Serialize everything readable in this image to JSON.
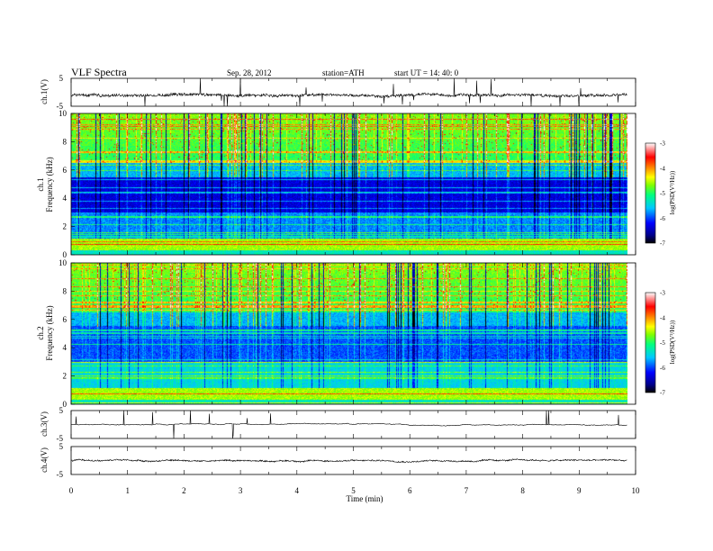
{
  "header": {
    "title": "VLF  Spectra",
    "date": "Sep. 28, 2012",
    "station": "station=ATH",
    "start": "start  UT  =    14: 40: 0"
  },
  "colors": {
    "colormap": [
      "#000000",
      "#00008b",
      "#0000ff",
      "#0060ff",
      "#00d8ff",
      "#00ff80",
      "#80ff00",
      "#ffff00",
      "#ff8000",
      "#ff0000",
      "#ffb0b0",
      "#ffffff"
    ]
  },
  "chart_data": [
    {
      "type": "line",
      "ylabel": "ch.1(V)",
      "ylim": [
        -5,
        5
      ],
      "yticks": [
        "5",
        "-5"
      ],
      "baseline": -1,
      "noise": "broadband spikes"
    },
    {
      "type": "heatmap",
      "ylabel": "ch.1",
      "ylabel2": "Frequency  (kHz)",
      "ylim": [
        0,
        10
      ],
      "yticks": [
        "0",
        "2",
        "4",
        "6",
        "8",
        "10"
      ],
      "colorbar_label": "log(PSD(V²/Hz))",
      "colorbar_range": [
        -7,
        -3
      ],
      "colorbar_ticks": [
        "-3",
        "-4",
        "-5",
        "-6",
        "-7"
      ]
    },
    {
      "type": "heatmap",
      "ylabel": "ch.2",
      "ylabel2": "Frequency  (kHz)",
      "ylim": [
        0,
        10
      ],
      "yticks": [
        "0",
        "2",
        "4",
        "6",
        "8",
        "10"
      ],
      "colorbar_label": "log(PSD(V²/Hz))",
      "colorbar_range": [
        -7,
        -3
      ],
      "colorbar_ticks": [
        "-3",
        "-4",
        "-5",
        "-6",
        "-7"
      ]
    },
    {
      "type": "line",
      "ylabel": "ch.3(V)",
      "ylim": [
        -5,
        5
      ],
      "yticks": [
        "5",
        "-5"
      ],
      "baseline": 0
    },
    {
      "type": "line",
      "ylabel": "ch.4(V)",
      "ylim": [
        -5,
        5
      ],
      "yticks": [
        "5",
        "-5"
      ],
      "baseline": 0
    }
  ],
  "xaxis": {
    "label": "Time  (min)",
    "range": [
      0,
      10
    ],
    "data_end": 9.85,
    "ticks": [
      "0",
      "1",
      "2",
      "3",
      "4",
      "5",
      "6",
      "7",
      "8",
      "9",
      "10"
    ]
  }
}
